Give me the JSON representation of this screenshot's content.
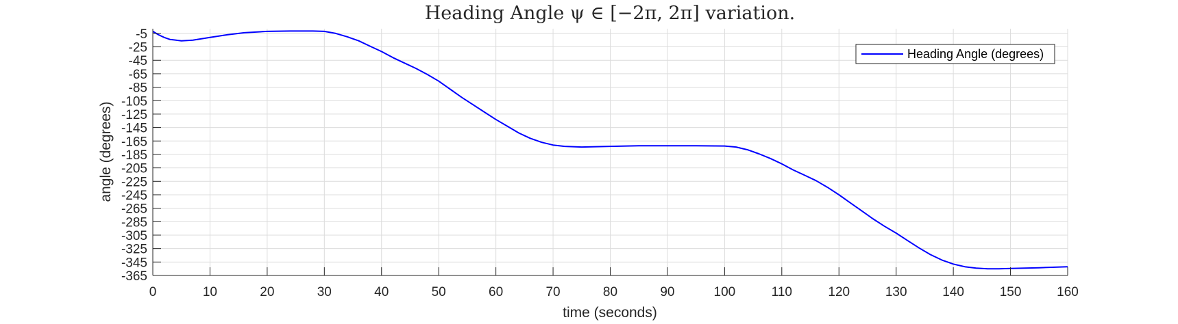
{
  "chart_data": {
    "type": "line",
    "title": "Heading Angle ψ ∈ [−2π, 2π] variation.",
    "xlabel": "time (seconds)",
    "ylabel": "angle (degrees)",
    "xlim": [
      0,
      160
    ],
    "ylim": [
      -365,
      2
    ],
    "x_ticks": [
      0,
      10,
      20,
      30,
      40,
      50,
      60,
      70,
      80,
      90,
      100,
      110,
      120,
      130,
      140,
      150,
      160
    ],
    "x_tick_labels": [
      "0",
      "10",
      "20",
      "30",
      "40",
      "50",
      "60",
      "70",
      "80",
      "90",
      "100",
      "110",
      "120",
      "130",
      "140",
      "150",
      "160"
    ],
    "y_ticks": [
      -5,
      -25,
      -45,
      -65,
      -85,
      -105,
      -125,
      -145,
      -165,
      -185,
      -205,
      -225,
      -245,
      -265,
      -285,
      -305,
      -325,
      -345,
      -365
    ],
    "y_tick_labels": [
      "-5",
      "-25",
      "-45",
      "-65",
      "-85",
      "-105",
      "-125",
      "-145",
      "-165",
      "-185",
      "-205",
      "-225",
      "-245",
      "-265",
      "-285",
      "-305",
      "-325",
      "-345",
      "-365"
    ],
    "grid": true,
    "legend_position": "top-right",
    "series": [
      {
        "name": "Heading Angle (degrees)",
        "color": "#0000ff",
        "x": [
          0,
          1,
          2,
          3,
          5,
          7,
          10,
          13,
          16,
          20,
          24,
          28,
          30,
          32,
          34,
          36,
          38,
          40,
          42,
          44,
          46,
          48,
          50,
          52,
          54,
          56,
          58,
          60,
          62,
          64,
          66,
          68,
          70,
          72,
          75,
          80,
          85,
          90,
          95,
          100,
          102,
          104,
          106,
          108,
          110,
          112,
          114,
          116,
          118,
          120,
          122,
          124,
          126,
          128,
          130,
          132,
          134,
          136,
          138,
          140,
          142,
          144,
          146,
          148,
          150,
          155,
          160
        ],
        "y": [
          -2,
          -7,
          -11,
          -14,
          -16,
          -15,
          -11,
          -7,
          -4,
          -2,
          -1.5,
          -1.5,
          -2,
          -5,
          -10,
          -16,
          -24,
          -32,
          -41,
          -49,
          -57,
          -66,
          -76,
          -88,
          -100,
          -111,
          -122,
          -133,
          -143,
          -153,
          -161,
          -167,
          -171,
          -173,
          -174,
          -173,
          -172,
          -172,
          -172,
          -172.5,
          -174,
          -178,
          -184,
          -191,
          -199,
          -208,
          -216,
          -224,
          -234,
          -245,
          -257,
          -269,
          -281,
          -292,
          -302,
          -313,
          -324,
          -334,
          -342,
          -348,
          -352,
          -354,
          -355,
          -355,
          -354.5,
          -353.5,
          -352
        ]
      }
    ]
  }
}
